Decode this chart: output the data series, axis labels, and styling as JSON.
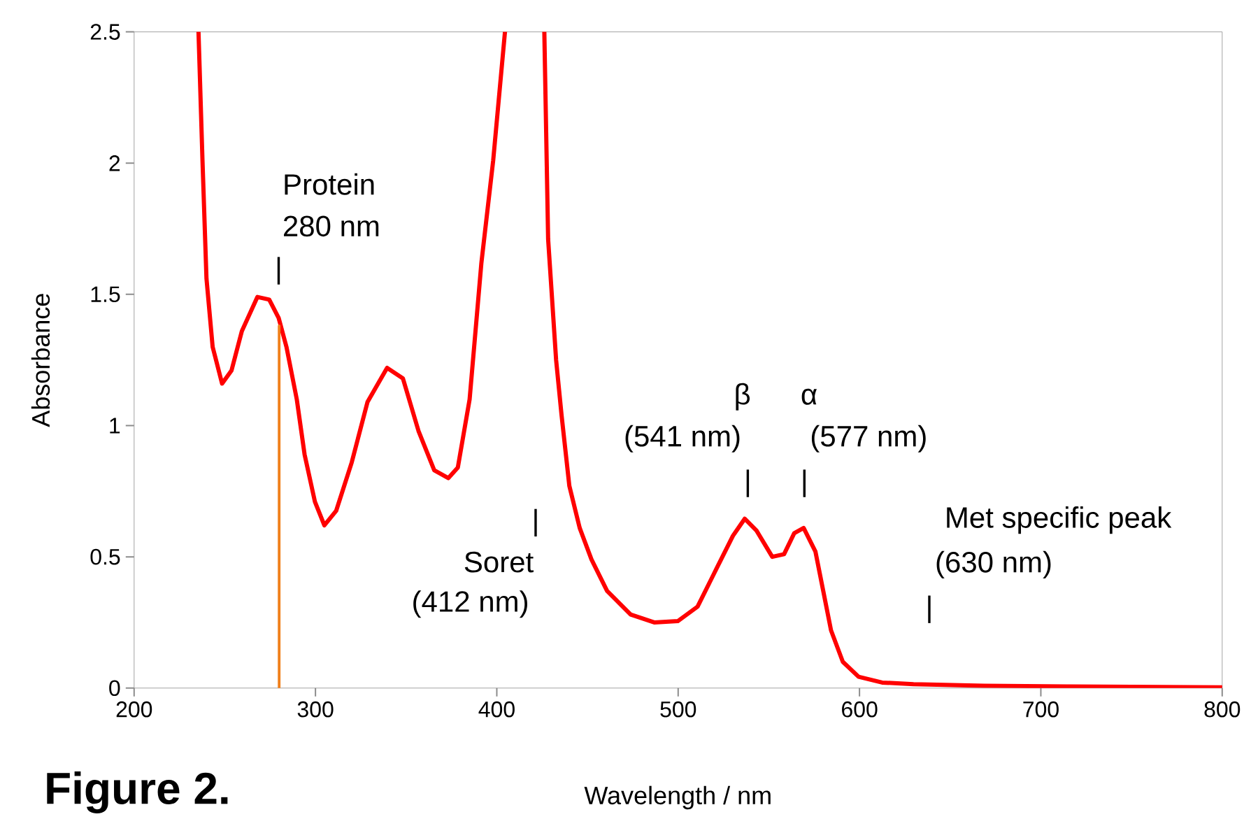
{
  "chart_data": {
    "type": "line",
    "xlabel": "Wavelength / nm",
    "ylabel": "Absorbance",
    "xlim": [
      200,
      800
    ],
    "ylim": [
      0,
      2.5
    ],
    "xticks": [
      200,
      300,
      400,
      500,
      600,
      700,
      800
    ],
    "yticks": [
      0,
      0.5,
      1,
      1.5,
      2,
      2.5
    ],
    "marker": "none",
    "series": [
      {
        "color": "#ff0000",
        "x": [
          235.5,
          237.7,
          239.9,
          243.3,
          248.5,
          253.7,
          259.4,
          268,
          274.5,
          279.7,
          284,
          289.7,
          294,
          299.7,
          304.9,
          311.4,
          320,
          328.7,
          339.5,
          348.2,
          356.8,
          365.5,
          373.3,
          378.5,
          385,
          391.5,
          398,
          404.5,
          415,
          426.2,
          428.3,
          432.7,
          435.7,
          440,
          445.7,
          452.2,
          460.8,
          473.8,
          486.8,
          499.8,
          510.7,
          521.5,
          530.2,
          536.7,
          543.2,
          551.9,
          558.4,
          564,
          569.2,
          575.7,
          580,
          584.3,
          590.8,
          599.5,
          612.5,
          629.8,
          668.8,
          716.5,
          800
        ],
        "values": [
          2.5,
          2.01,
          1.56,
          1.3,
          1.16,
          1.21,
          1.36,
          1.49,
          1.48,
          1.41,
          1.3,
          1.1,
          0.89,
          0.71,
          0.62,
          0.675,
          0.86,
          1.09,
          1.22,
          1.18,
          0.98,
          0.83,
          0.8,
          0.84,
          1.1,
          1.62,
          2.01,
          2.5,
          null,
          2.5,
          1.71,
          1.25,
          1.04,
          0.77,
          0.61,
          0.49,
          0.37,
          0.28,
          0.25,
          0.255,
          0.31,
          0.46,
          0.58,
          0.645,
          0.6,
          0.5,
          0.51,
          0.59,
          0.61,
          0.52,
          0.37,
          0.22,
          0.1,
          0.043,
          0.021,
          0.015,
          0.009,
          0.006,
          0.003
        ]
      },
      {
        "color": "#f07f1a",
        "x": [
          280,
          280
        ],
        "values": [
          0,
          1.38
        ]
      }
    ],
    "annotations": [
      "Protein",
      "280 nm",
      "|",
      "|",
      "Soret",
      "(412 nm)",
      "β",
      "(541 nm)",
      "|",
      "α",
      "(577 nm)",
      "|",
      "Met specific peak",
      "(630 nm)",
      "|",
      "Figure 2."
    ]
  }
}
